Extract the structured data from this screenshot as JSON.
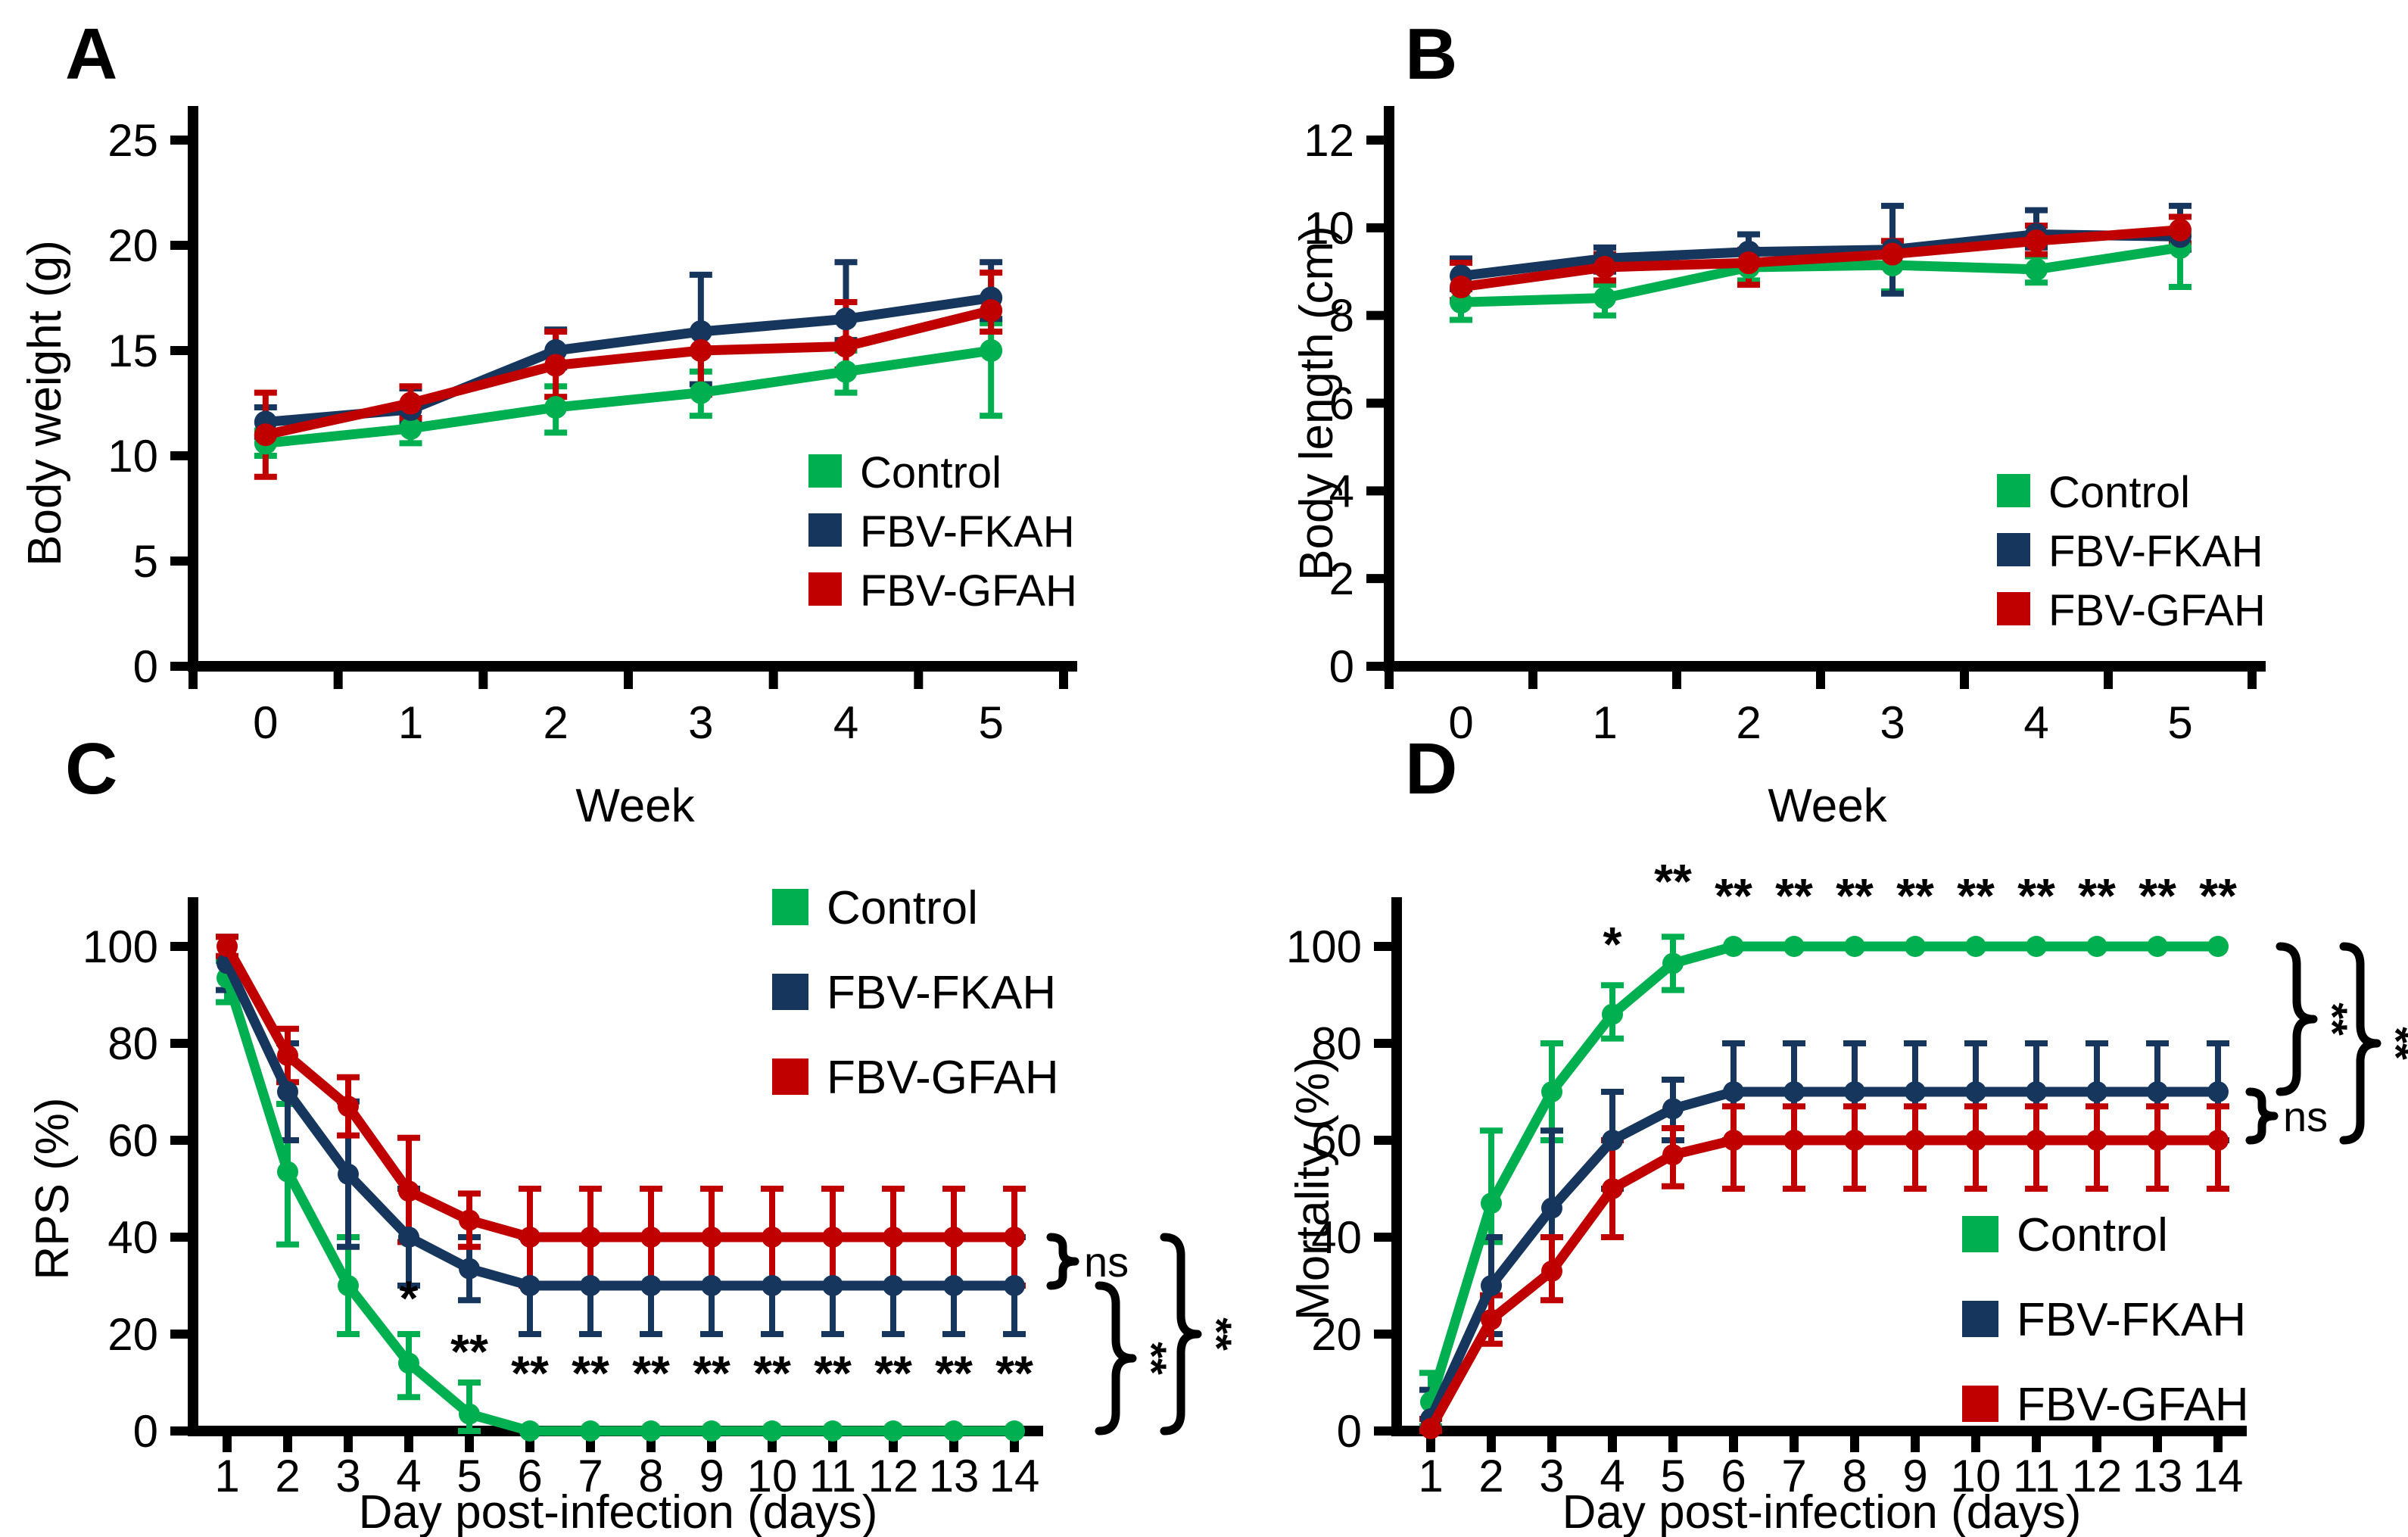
{
  "figure": {
    "background": "#ffffff",
    "series_colors": {
      "Control": "#00B050",
      "FBV-FKAH": "#17365D",
      "FBV-GFAH": "#C00000"
    }
  },
  "chart_data": [
    {
      "panel_label": "A",
      "type": "line",
      "xlabel": "Week",
      "ylabel": "Body weight (g)",
      "x_tick_labels": [
        "0",
        "1",
        "2",
        "3",
        "4",
        "5"
      ],
      "ylim": [
        0,
        25
      ],
      "yticks": [
        0,
        5,
        10,
        15,
        20,
        25
      ],
      "legend_position": "inside-right",
      "series": [
        {
          "name": "Control",
          "color": "#00B050",
          "values": [
            10.6,
            11.3,
            12.3,
            13.0,
            14.0,
            15.0
          ],
          "err_up": [
            0.6,
            0.5,
            1.0,
            1.0,
            1.0,
            1.3
          ],
          "err_dn": [
            0.6,
            0.7,
            1.2,
            1.1,
            1.0,
            3.1
          ]
        },
        {
          "name": "FBV-FKAH",
          "color": "#17365D",
          "values": [
            11.6,
            12.2,
            15.0,
            15.9,
            16.5,
            17.5
          ],
          "err_up": [
            0.7,
            1.0,
            1.0,
            2.7,
            2.7,
            1.7
          ],
          "err_dn": [
            0.7,
            0.6,
            0.8,
            2.5,
            1.0,
            1.0
          ]
        },
        {
          "name": "FBV-GFAH",
          "color": "#C00000",
          "values": [
            11.0,
            12.5,
            14.3,
            15.0,
            15.2,
            16.9
          ],
          "err_up": [
            2.0,
            0.8,
            1.6,
            0.9,
            2.1,
            1.8
          ],
          "err_dn": [
            2.0,
            0.7,
            1.5,
            2.1,
            1.1,
            1.0
          ]
        }
      ],
      "legend": [
        "Control",
        "FBV-FKAH",
        "FBV-GFAH"
      ],
      "annotations": [],
      "comparisons": []
    },
    {
      "panel_label": "B",
      "type": "line",
      "xlabel": "Week",
      "ylabel": "Body length (cm)",
      "x_tick_labels": [
        "0",
        "1",
        "2",
        "3",
        "4",
        "5"
      ],
      "ylim": [
        0,
        12
      ],
      "yticks": [
        0,
        2,
        4,
        6,
        8,
        10,
        12
      ],
      "legend_position": "inside-right",
      "series": [
        {
          "name": "Control",
          "color": "#00B050",
          "values": [
            8.3,
            8.4,
            9.1,
            9.15,
            9.05,
            9.55
          ],
          "err_up": [
            0.3,
            0.3,
            0.3,
            0.3,
            0.3,
            0.3
          ],
          "err_dn": [
            0.4,
            0.4,
            0.3,
            0.6,
            0.3,
            0.9
          ]
        },
        {
          "name": "FBV-FKAH",
          "color": "#17365D",
          "values": [
            8.9,
            9.3,
            9.45,
            9.5,
            9.85,
            9.8
          ],
          "err_up": [
            0.4,
            0.25,
            0.4,
            1.0,
            0.55,
            0.7
          ],
          "err_dn": [
            0.3,
            0.3,
            0.3,
            1.0,
            0.3,
            0.3
          ]
        },
        {
          "name": "FBV-GFAH",
          "color": "#C00000",
          "values": [
            8.65,
            9.1,
            9.2,
            9.4,
            9.7,
            9.95
          ],
          "err_up": [
            0.55,
            0.3,
            0.3,
            0.3,
            0.35,
            0.3
          ],
          "err_dn": [
            0.3,
            0.3,
            0.5,
            0.3,
            0.3,
            0.3
          ]
        }
      ],
      "legend": [
        "Control",
        "FBV-FKAH",
        "FBV-GFAH"
      ],
      "annotations": [],
      "comparisons": []
    },
    {
      "panel_label": "C",
      "type": "line",
      "xlabel": "Day post-infection (days)",
      "ylabel": "RPS (%)",
      "x_tick_labels": [
        "1",
        "2",
        "3",
        "4",
        "5",
        "6",
        "7",
        "8",
        "9",
        "10",
        "11",
        "12",
        "13",
        "14"
      ],
      "ylim": [
        0,
        100
      ],
      "yticks": [
        0,
        20,
        40,
        60,
        80,
        100
      ],
      "legend_position": "inside-top-right",
      "series": [
        {
          "name": "Control",
          "color": "#00B050",
          "values": [
            93.5,
            53.5,
            30,
            14,
            3.5,
            0,
            0,
            0,
            0,
            0,
            0,
            0,
            0,
            0
          ],
          "err_up": [
            3.5,
            14,
            10,
            6,
            6.5,
            0,
            0,
            0,
            0,
            0,
            0,
            0,
            0,
            0
          ],
          "err_dn": [
            5,
            15,
            10,
            7,
            3.5,
            0,
            0,
            0,
            0,
            0,
            0,
            0,
            0,
            0
          ]
        },
        {
          "name": "FBV-FKAH",
          "color": "#17365D",
          "values": [
            96.5,
            70,
            53,
            40,
            33.5,
            30,
            30,
            30,
            30,
            30,
            30,
            30,
            30,
            30
          ],
          "err_up": [
            5.5,
            10,
            15,
            10,
            6.5,
            10,
            10,
            10,
            10,
            10,
            10,
            10,
            10,
            10
          ],
          "err_dn": [
            5.5,
            10,
            15,
            10,
            6.5,
            10,
            10,
            10,
            10,
            10,
            10,
            10,
            10,
            10
          ]
        },
        {
          "name": "FBV-GFAH",
          "color": "#C00000",
          "values": [
            100,
            77.5,
            67,
            49.5,
            43.5,
            40,
            40,
            40,
            40,
            40,
            40,
            40,
            40,
            40
          ],
          "err_up": [
            2,
            5.5,
            6,
            11,
            5.5,
            10,
            10,
            10,
            10,
            10,
            10,
            10,
            10,
            10
          ],
          "err_dn": [
            2,
            5.5,
            6,
            10.5,
            5.5,
            10,
            10,
            10,
            10,
            10,
            10,
            10,
            10,
            10
          ]
        }
      ],
      "legend": [
        "Control",
        "FBV-FKAH",
        "FBV-GFAH"
      ],
      "annotations": [
        {
          "day": 4,
          "value": 24,
          "text": "*"
        },
        {
          "day": 5,
          "value": 13,
          "text": "**"
        },
        {
          "day": 6,
          "value": 8.5,
          "text": "**"
        },
        {
          "day": 7,
          "value": 8.5,
          "text": "**"
        },
        {
          "day": 8,
          "value": 8.5,
          "text": "**"
        },
        {
          "day": 9,
          "value": 8.5,
          "text": "**"
        },
        {
          "day": 10,
          "value": 8.5,
          "text": "**"
        },
        {
          "day": 11,
          "value": 8.5,
          "text": "**"
        },
        {
          "day": 12,
          "value": 8.5,
          "text": "**"
        },
        {
          "day": 13,
          "value": 8.5,
          "text": "**"
        },
        {
          "day": 14,
          "value": 8.5,
          "text": "**"
        }
      ],
      "comparisons": [
        {
          "series_a": "FBV-GFAH",
          "series_b": "FBV-FKAH",
          "label": "ns",
          "rotated": false
        },
        {
          "series_a": "FBV-FKAH",
          "series_b": "Control",
          "label": "**",
          "rotated": true
        },
        {
          "series_a": "FBV-GFAH",
          "series_b": "Control",
          "label": "**",
          "rotated": true
        }
      ]
    },
    {
      "panel_label": "D",
      "type": "line",
      "xlabel": "Day post-infection (days)",
      "ylabel": "Mortality (%)",
      "x_tick_labels": [
        "1",
        "2",
        "3",
        "4",
        "5",
        "6",
        "7",
        "8",
        "9",
        "10",
        "11",
        "12",
        "13",
        "14"
      ],
      "ylim": [
        0,
        100
      ],
      "yticks": [
        0,
        20,
        40,
        60,
        80,
        100
      ],
      "legend_position": "inside-bottom-right",
      "series": [
        {
          "name": "Control",
          "color": "#00B050",
          "values": [
            6,
            47,
            70,
            86,
            96.5,
            100,
            100,
            100,
            100,
            100,
            100,
            100,
            100,
            100
          ],
          "err_up": [
            6,
            15,
            10,
            6,
            5.5,
            0,
            0,
            0,
            0,
            0,
            0,
            0,
            0,
            0
          ],
          "err_dn": [
            5,
            8,
            10,
            5,
            5.5,
            0,
            0,
            0,
            0,
            0,
            0,
            0,
            0,
            0
          ]
        },
        {
          "name": "FBV-FKAH",
          "color": "#17365D",
          "values": [
            2.5,
            30,
            46,
            60,
            66.5,
            70,
            70,
            70,
            70,
            70,
            70,
            70,
            70,
            70
          ],
          "err_up": [
            6,
            10,
            16,
            10,
            6,
            10,
            10,
            10,
            10,
            10,
            10,
            10,
            10,
            10
          ],
          "err_dn": [
            2,
            10,
            6,
            10,
            6.5,
            10,
            10,
            10,
            10,
            10,
            10,
            10,
            10,
            10
          ]
        },
        {
          "name": "FBV-GFAH",
          "color": "#C00000",
          "values": [
            0.5,
            23,
            33,
            50,
            57,
            60,
            60,
            60,
            60,
            60,
            60,
            60,
            60,
            60
          ],
          "err_up": [
            2,
            5,
            7,
            10,
            5.5,
            7,
            7,
            7,
            7,
            7,
            7,
            7,
            7,
            7
          ],
          "err_dn": [
            0.5,
            5,
            6,
            10,
            6.5,
            10,
            10,
            10,
            10,
            10,
            10,
            10,
            10,
            10
          ]
        }
      ],
      "legend": [
        "Control",
        "FBV-FKAH",
        "FBV-GFAH"
      ],
      "annotations": [
        {
          "day": 4,
          "value": 97,
          "text": "*"
        },
        {
          "day": 5,
          "value": 110,
          "text": "**"
        },
        {
          "day": 6,
          "value": 107,
          "text": "**"
        },
        {
          "day": 7,
          "value": 107,
          "text": "**"
        },
        {
          "day": 8,
          "value": 107,
          "text": "**"
        },
        {
          "day": 9,
          "value": 107,
          "text": "**"
        },
        {
          "day": 10,
          "value": 107,
          "text": "**"
        },
        {
          "day": 11,
          "value": 107,
          "text": "**"
        },
        {
          "day": 12,
          "value": 107,
          "text": "**"
        },
        {
          "day": 13,
          "value": 107,
          "text": "**"
        },
        {
          "day": 14,
          "value": 107,
          "text": "**"
        }
      ],
      "comparisons": [
        {
          "series_a": "Control",
          "series_b": "FBV-FKAH",
          "label": "**",
          "rotated": true
        },
        {
          "series_a": "Control",
          "series_b": "FBV-GFAH",
          "label": "**",
          "rotated": true
        },
        {
          "series_a": "FBV-FKAH",
          "series_b": "FBV-GFAH",
          "label": "ns",
          "rotated": false
        }
      ]
    }
  ]
}
